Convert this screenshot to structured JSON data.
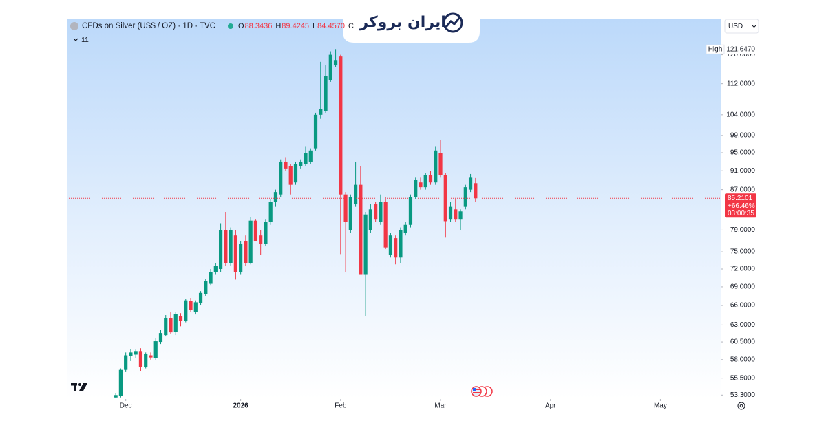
{
  "header": {
    "symbol": "CFDs on Silver (US$ / OZ) · 1D · TVC",
    "ohlc": [
      {
        "key": "O",
        "value": "88.3436"
      },
      {
        "key": "H",
        "value": "89.4245"
      },
      {
        "key": "L",
        "value": "84.4570"
      },
      {
        "key": "C"
      }
    ],
    "indicators_count": "11",
    "brand": "ایران بروکر",
    "currency": "USD"
  },
  "chart_data": {
    "type": "candlestick",
    "open": [
      53.0,
      53.2,
      56.6,
      58.5,
      58.7,
      59.2,
      57.0,
      58.6,
      58.2,
      60.5,
      61.5,
      64.0,
      62.0,
      64.3,
      63.6,
      66.7,
      65.0,
      66.4,
      67.8,
      69.5,
      71.5,
      72.0,
      79.0,
      73.0,
      78.0,
      71.5,
      77.0,
      73.0,
      80.8,
      78.0,
      76.5,
      80.5,
      84.5,
      86.0,
      93.0,
      92.0,
      88.5,
      92.0,
      92.5,
      93.0,
      96.0,
      104.0,
      105.0,
      113.0,
      117.0,
      119.5,
      86.0,
      79.0,
      84.0,
      88.0,
      71.0,
      79.0,
      84.0,
      80.5,
      84.5,
      74.5,
      77.5,
      74.0,
      78.5,
      80.0,
      85.5,
      88.5,
      87.5,
      90.0,
      88.5,
      95.0,
      90.0,
      81.0,
      83.0,
      81.0,
      83.5,
      87.0,
      88.3436
    ],
    "high": [
      53.5,
      56.8,
      59.0,
      59.5,
      59.4,
      59.6,
      59.0,
      59.0,
      61.0,
      62.3,
      64.5,
      65.0,
      65.0,
      64.8,
      67.0,
      67.2,
      66.8,
      68.3,
      70.3,
      72.0,
      73.0,
      80.3,
      82.5,
      79.5,
      79.0,
      77.0,
      78.0,
      81.5,
      81.0,
      79.0,
      81.0,
      85.0,
      87.0,
      93.5,
      94.0,
      92.5,
      93.0,
      93.5,
      96.5,
      96.0,
      104.5,
      118.0,
      117.0,
      121.0,
      121.647,
      120.0,
      86.5,
      86.0,
      93.0,
      92.0,
      82.5,
      84.0,
      84.5,
      86.0,
      85.5,
      78.5,
      78.0,
      79.5,
      80.5,
      86.0,
      89.5,
      89.5,
      90.5,
      91.0,
      96.5,
      98.0,
      90.5,
      84.5,
      85.0,
      83.0,
      88.0,
      90.3,
      89.4245
    ],
    "low": [
      52.9,
      53.0,
      56.3,
      57.8,
      58.2,
      56.4,
      56.8,
      58.0,
      57.9,
      60.2,
      61.3,
      61.7,
      61.5,
      62.8,
      63.4,
      65.0,
      64.6,
      66.0,
      67.5,
      69.2,
      71.0,
      71.5,
      72.5,
      72.6,
      70.2,
      71.0,
      72.5,
      72.8,
      77.0,
      74.5,
      76.0,
      80.0,
      83.5,
      85.5,
      91.0,
      86.0,
      88.0,
      91.5,
      92.0,
      92.5,
      95.5,
      103.0,
      104.5,
      112.5,
      116.5,
      74.6,
      71.5,
      78.5,
      83.5,
      71.0,
      64.4,
      78.5,
      80.5,
      80.0,
      75.5,
      74.0,
      72.8,
      73.0,
      78.0,
      79.5,
      85.0,
      87.0,
      87.0,
      88.0,
      88.0,
      89.5,
      77.6,
      80.5,
      80.5,
      79.0,
      83.0,
      86.5,
      84.457
    ],
    "close": [
      53.3,
      56.6,
      58.6,
      59.0,
      59.2,
      57.0,
      58.8,
      58.3,
      60.6,
      61.8,
      64.0,
      61.9,
      64.7,
      63.6,
      66.8,
      65.3,
      66.5,
      68.0,
      70.0,
      71.5,
      72.5,
      79.0,
      73.0,
      79.0,
      71.5,
      76.5,
      73.0,
      80.8,
      77.0,
      76.5,
      80.5,
      84.5,
      86.5,
      93.0,
      91.5,
      88.0,
      92.5,
      93.0,
      95.0,
      95.5,
      104.0,
      105.5,
      114.0,
      120.0,
      118.5,
      86.0,
      80.5,
      85.5,
      88.0,
      71.0,
      82.0,
      83.0,
      81.0,
      84.5,
      75.8,
      78.0,
      74.0,
      79.0,
      80.0,
      85.5,
      89.0,
      87.5,
      90.0,
      88.5,
      95.5,
      90.0,
      80.7,
      83.5,
      81.0,
      82.6,
      87.5,
      89.5,
      85.2101
    ],
    "up_color": "#089981",
    "down_color": "#f23645",
    "log_scale": true,
    "xlim": [
      -9.8,
      121.2
    ],
    "xticks": [
      {
        "value": 2,
        "label": "Dec"
      },
      {
        "value": 25,
        "label": "2026"
      },
      {
        "value": 45,
        "label": "Feb"
      },
      {
        "value": 65,
        "label": "Mar"
      },
      {
        "value": 87,
        "label": "Apr"
      },
      {
        "value": 109,
        "label": "May"
      }
    ],
    "ylim": [
      51.1,
      130.6
    ],
    "yticks": [
      {
        "value": 120,
        "label": "120.0000"
      },
      {
        "value": 112,
        "label": "112.0000"
      },
      {
        "value": 104,
        "label": "104.0000"
      },
      {
        "value": 99,
        "label": "99.0000"
      },
      {
        "value": 95,
        "label": "95.0000"
      },
      {
        "value": 91,
        "label": "91.0000"
      },
      {
        "value": 87,
        "label": "87.0000"
      },
      {
        "value": 79,
        "label": "79.0000"
      },
      {
        "value": 75,
        "label": "75.0000"
      },
      {
        "value": 72,
        "label": "72.0000"
      },
      {
        "value": 69,
        "label": "69.0000"
      },
      {
        "value": 66,
        "label": "66.0000"
      },
      {
        "value": 63,
        "label": "63.0000"
      },
      {
        "value": 60.5,
        "label": "60.5000"
      },
      {
        "value": 58,
        "label": "58.0000"
      },
      {
        "value": 55.5,
        "label": "55.5000"
      },
      {
        "value": 53.3,
        "label": "53.3000"
      }
    ],
    "annotations": {
      "high_label": "High",
      "high_value": "121.6470",
      "last_price": "85.2101",
      "change": "+66.46%",
      "countdown": "03:00:35"
    }
  }
}
